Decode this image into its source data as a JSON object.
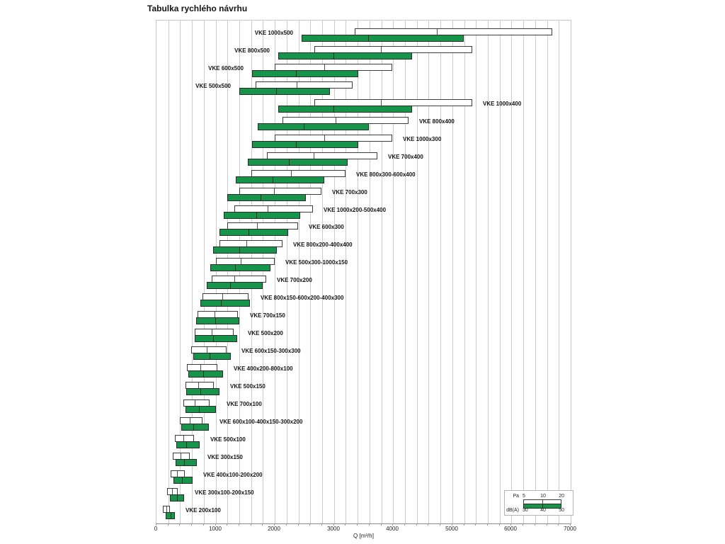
{
  "title": "Tabulka rychlého návrhu",
  "chart_data": {
    "type": "bar",
    "orientation": "horizontal-range-pairs",
    "title": "Tabulka rychlého návrhu",
    "xlabel": "Q [m³/h]",
    "xlim": [
      0,
      7000
    ],
    "grid_step": 200,
    "tick_step": 1000,
    "x_ticks": [
      "0",
      "1000",
      "2000",
      "3000",
      "4000",
      "5000",
      "6000",
      "7000"
    ],
    "grid": true,
    "colors": {
      "dba_fill": "#169449",
      "pa_fill": "#ffffff",
      "bar_border": "#2b2b2b",
      "gridline": "#cdcdcd"
    },
    "legend": {
      "position": "bottom-right",
      "pa_label": "Pa",
      "pa_values": [
        "5",
        "10",
        "20"
      ],
      "dba_label": "dB(A)",
      "dba_values": [
        "30",
        "40",
        "50"
      ]
    },
    "series_meaning": {
      "pa": "airflow Q at pressure drop 5 / 10 / 20 Pa (white bar: start / mid tick / end)",
      "dba": "airflow Q at sound level 30 / 40 / 50 dB(A) (green bar: start / mid tick / end)"
    },
    "rows": [
      {
        "label": "VKE 1000x500",
        "label_side": "left",
        "pa": [
          3350,
          4730,
          6690
        ],
        "dba": [
          2450,
          3570,
          5190
        ]
      },
      {
        "label": "VKE 800x500",
        "label_side": "left",
        "pa": [
          2670,
          3780,
          5340
        ],
        "dba": [
          2060,
          2980,
          4320
        ]
      },
      {
        "label": "VKE 600x500",
        "label_side": "left",
        "pa": [
          2000,
          2820,
          3990
        ],
        "dba": [
          1620,
          2350,
          3410
        ]
      },
      {
        "label": "VKE 500x500",
        "label_side": "left",
        "pa": [
          1670,
          2360,
          3320
        ],
        "dba": [
          1400,
          2010,
          2930
        ]
      },
      {
        "label": "VKE 1000x400",
        "label_side": "right",
        "pa": [
          2670,
          3780,
          5340
        ],
        "dba": [
          2060,
          2980,
          4320
        ]
      },
      {
        "label": "VKE 800x400",
        "label_side": "right",
        "pa": [
          2130,
          3010,
          4260
        ],
        "dba": [
          1710,
          2480,
          3590
        ]
      },
      {
        "label": "VKE 1000x300",
        "label_side": "right",
        "pa": [
          2000,
          2820,
          3990
        ],
        "dba": [
          1620,
          2350,
          3410
        ]
      },
      {
        "label": "VKE 700x400",
        "label_side": "right",
        "pa": [
          1870,
          2640,
          3730
        ],
        "dba": [
          1540,
          2230,
          3230
        ]
      },
      {
        "label": "VKE 800x300-600x400",
        "label_side": "right",
        "pa": [
          1600,
          2260,
          3190
        ],
        "dba": [
          1340,
          1950,
          2830
        ]
      },
      {
        "label": "VKE 700x300",
        "label_side": "right",
        "pa": [
          1400,
          1980,
          2790
        ],
        "dba": [
          1200,
          1750,
          2530
        ]
      },
      {
        "label": "VKE 1000x200-500x400",
        "label_side": "right",
        "pa": [
          1320,
          1870,
          2650
        ],
        "dba": [
          1140,
          1680,
          2430
        ]
      },
      {
        "label": "VKE 600x300",
        "label_side": "right",
        "pa": [
          1200,
          1690,
          2390
        ],
        "dba": [
          1060,
          1540,
          2230
        ]
      },
      {
        "label": "VKE 800x200-400x400",
        "label_side": "right",
        "pa": [
          1070,
          1510,
          2130
        ],
        "dba": [
          960,
          1390,
          2030
        ]
      },
      {
        "label": "VKE 500x300-1000x150",
        "label_side": "right",
        "pa": [
          1000,
          1410,
          2000
        ],
        "dba": [
          910,
          1320,
          1930
        ]
      },
      {
        "label": "VKE 700x200",
        "label_side": "right",
        "pa": [
          930,
          1310,
          1860
        ],
        "dba": [
          850,
          1230,
          1800
        ]
      },
      {
        "label": "VKE 800x150-600x200-400x300",
        "label_side": "right",
        "pa": [
          780,
          1100,
          1560
        ],
        "dba": [
          740,
          1080,
          1580
        ]
      },
      {
        "label": "VKE 700x150",
        "label_side": "right",
        "pa": [
          690,
          975,
          1380
        ],
        "dba": [
          670,
          980,
          1400
        ]
      },
      {
        "label": "VKE 500x200",
        "label_side": "right",
        "pa": [
          650,
          920,
          1300
        ],
        "dba": [
          650,
          940,
          1360
        ]
      },
      {
        "label": "VKE 600x150-300x300",
        "label_side": "right",
        "pa": [
          590,
          835,
          1180
        ],
        "dba": [
          620,
          890,
          1260
        ]
      },
      {
        "label": "VKE 400x200-800x100",
        "label_side": "right",
        "pa": [
          510,
          725,
          1025
        ],
        "dba": [
          540,
          780,
          1130
        ]
      },
      {
        "label": "VKE 500x150",
        "label_side": "right",
        "pa": [
          490,
          690,
          975
        ],
        "dba": [
          500,
          730,
          1060
        ]
      },
      {
        "label": "VKE 700x100",
        "label_side": "right",
        "pa": [
          450,
          635,
          900
        ],
        "dba": [
          490,
          700,
          1010
        ]
      },
      {
        "label": "VKE 600x100-400x150-300x200",
        "label_side": "right",
        "pa": [
          390,
          550,
          775
        ],
        "dba": [
          420,
          610,
          880
        ]
      },
      {
        "label": "VKE 500x100",
        "label_side": "right",
        "pa": [
          310,
          440,
          630
        ],
        "dba": [
          340,
          490,
          730
        ]
      },
      {
        "label": "VKE 300x150",
        "label_side": "right",
        "pa": [
          280,
          400,
          565
        ],
        "dba": [
          320,
          460,
          680
        ]
      },
      {
        "label": "VKE 400x100-200x200",
        "label_side": "right",
        "pa": [
          240,
          340,
          480
        ],
        "dba": [
          290,
          420,
          610
        ]
      },
      {
        "label": "VKE 300x100-200x150",
        "label_side": "right",
        "pa": [
          175,
          250,
          355
        ],
        "dba": [
          230,
          330,
          470
        ]
      },
      {
        "label": "VKE 200x100",
        "label_side": "right",
        "pa": [
          110,
          160,
          230
        ],
        "dba": [
          155,
          225,
          310
        ]
      }
    ]
  }
}
